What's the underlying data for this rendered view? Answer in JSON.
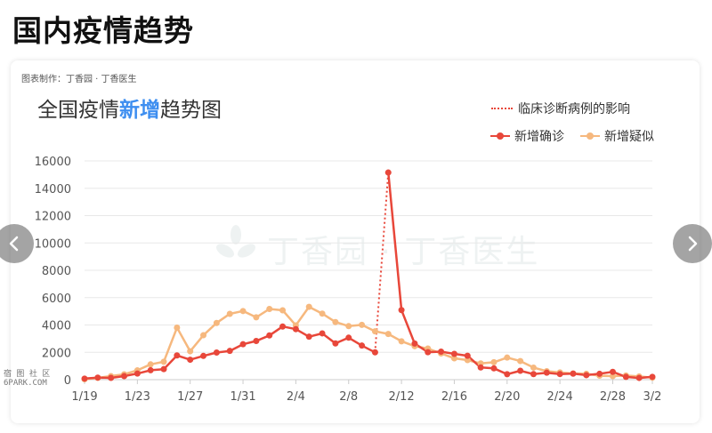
{
  "page": {
    "title": "国内疫情趋势",
    "credit": "图表制作：丁香园 · 丁香医生",
    "side_watermark_line1": "宿 图 社 区",
    "side_watermark_line2": "6PARK.COM",
    "watermark_text": "丁香园 · 丁香医生"
  },
  "colors": {
    "confirmed": "#e8473a",
    "suspected": "#f6b87e",
    "title_accent": "#3d8ef0",
    "grid": "#e8e8e8"
  },
  "icons": {
    "prev": "chevron-left-icon",
    "next": "chevron-right-icon",
    "watermark_logo": "clove-flower-icon"
  },
  "chart_data": {
    "type": "line",
    "title_prefix": "全国疫情",
    "title_highlight": "新增",
    "title_suffix": "趋势图",
    "legend": {
      "clinical_note": "临床诊断病例的影响",
      "confirmed": "新增确诊",
      "suspected": "新增疑似"
    },
    "y_ticks": [
      "16000",
      "14000",
      "12000",
      "10000",
      "8000",
      "6000",
      "4000",
      "2000",
      "0"
    ],
    "ylim": [
      0,
      16000
    ],
    "x_ticks": [
      "1/19",
      "1/23",
      "1/27",
      "1/31",
      "2/4",
      "2/8",
      "2/12",
      "2/16",
      "2/20",
      "2/24",
      "2/28",
      "3/2"
    ],
    "x_tick_index": [
      0,
      4,
      8,
      12,
      16,
      20,
      24,
      28,
      32,
      36,
      40,
      43
    ],
    "grid": true,
    "series": [
      {
        "name": "新增确诊",
        "values": [
          77,
          149,
          131,
          259,
          444,
          688,
          769,
          1771,
          1459,
          1737,
          1982,
          2102,
          2590,
          2829,
          3235,
          3887,
          3694,
          3143,
          3385,
          2652,
          3070,
          2492,
          2000,
          15152,
          5090,
          2641,
          2009,
          2048,
          1886,
          1749,
          891,
          826,
          399,
          649,
          406,
          509,
          409,
          439,
          329,
          428,
          573,
          202,
          125,
          206
        ]
      },
      {
        "name": "新增疑似",
        "values": [
          27,
          130,
          257,
          392,
          680,
          1118,
          1309,
          3806,
          2077,
          3248,
          4148,
          4812,
          5019,
          4562,
          5173,
          5072,
          3971,
          5328,
          4833,
          4214,
          3916,
          4008,
          3536,
          3342,
          2807,
          2450,
          2277,
          1918,
          1563,
          1432,
          1185,
          1277,
          1614,
          1361,
          882,
          620,
          530,
          452,
          427,
          289,
          260,
          300,
          232,
          141
        ]
      }
    ],
    "clinical_jump": {
      "from_index": 23,
      "to_index": 24
    }
  }
}
